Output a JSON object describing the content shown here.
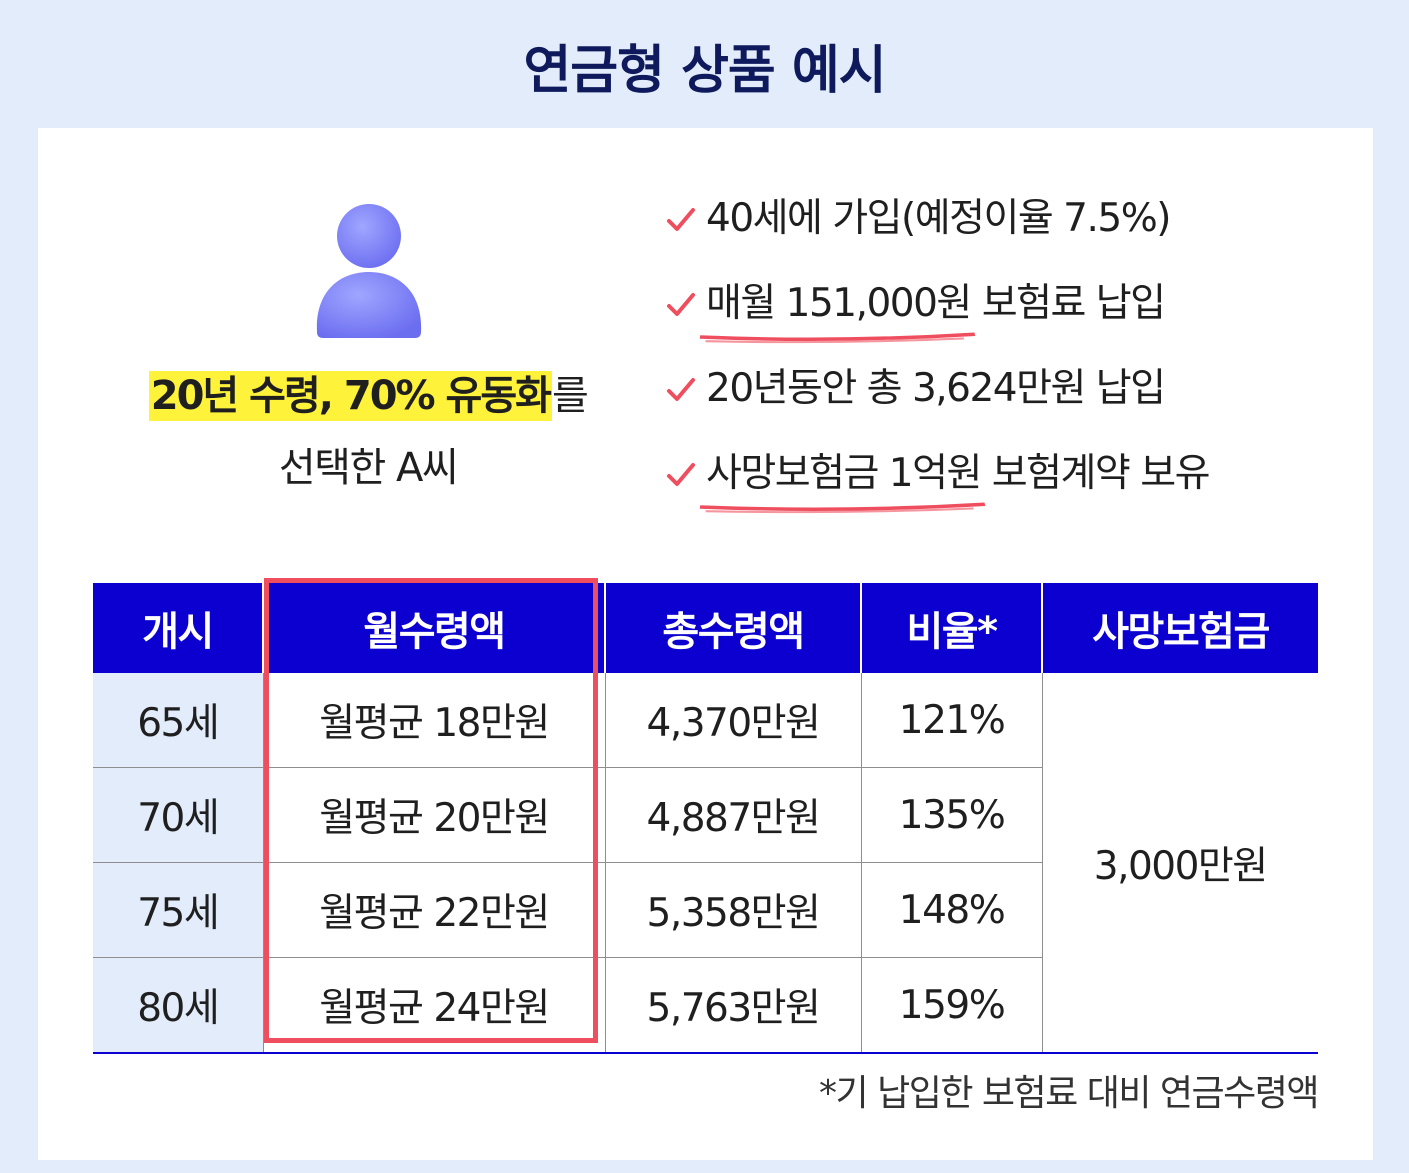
{
  "title": "연금형 상품 예시",
  "person": {
    "icon": "person-icon",
    "highlight": "20년 수령, 70% 유동화",
    "suffix": "를",
    "line2": "선택한 A씨"
  },
  "checklist": [
    {
      "icon": "check-icon",
      "text": "40세에 가입(예정이율 7.5%)"
    },
    {
      "icon": "check-icon",
      "underlined": "매월 151,000원",
      "rest": " 보험료 납입"
    },
    {
      "icon": "check-icon",
      "text": "20년동안 총 3,624만원 납입"
    },
    {
      "icon": "check-icon",
      "underlined": "사망보험금 1억원",
      "rest": " 보험계약 보유"
    }
  ],
  "table": {
    "headers": [
      "개시",
      "월수령액",
      "총수령액",
      "비율*",
      "사망보험금"
    ],
    "rows": [
      {
        "start": "65세",
        "monthly": "월평균 18만원",
        "total": "4,370만원",
        "ratio": "121%"
      },
      {
        "start": "70세",
        "monthly": "월평균 20만원",
        "total": "4,887만원",
        "ratio": "135%"
      },
      {
        "start": "75세",
        "monthly": "월평균 22만원",
        "total": "5,358만원",
        "ratio": "148%"
      },
      {
        "start": "80세",
        "monthly": "월평균 24만원",
        "total": "5,763만원",
        "ratio": "159%"
      }
    ],
    "death_benefit": "3,000만원"
  },
  "footnote": "*기 납입한 보험료 대비 연금수령액",
  "colors": {
    "title": "#0e1a5c",
    "header": "#0b00d0",
    "highlight": "#fff23a",
    "accent_red": "#ef4e5e",
    "background": "#e3ecfa"
  }
}
